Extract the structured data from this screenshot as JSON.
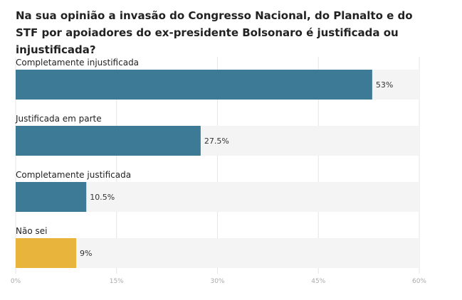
{
  "chart_data": {
    "type": "bar",
    "orientation": "horizontal",
    "title": "Na sua opinião a invasão do Congresso Nacional, do Planalto e do STF por apoiadores do ex-presidente Bolsonaro é justificada ou injustificada?",
    "categories": [
      "Completamente injustificada",
      "Justificada em parte",
      "Completamente justificada",
      "Não sei"
    ],
    "values": [
      53,
      27.5,
      10.5,
      9
    ],
    "value_labels": [
      "53%",
      "27.5%",
      "10.5%",
      "9%"
    ],
    "bar_colors": [
      "#3d7a96",
      "#3d7a96",
      "#3d7a96",
      "#e9b43c"
    ],
    "track_color": "#f4f4f4",
    "xlim": [
      0,
      60
    ],
    "ticks": [
      0,
      15,
      30,
      45,
      60
    ],
    "tick_labels": [
      "0%",
      "15%",
      "30%",
      "45%",
      "60%"
    ],
    "grid": true
  }
}
